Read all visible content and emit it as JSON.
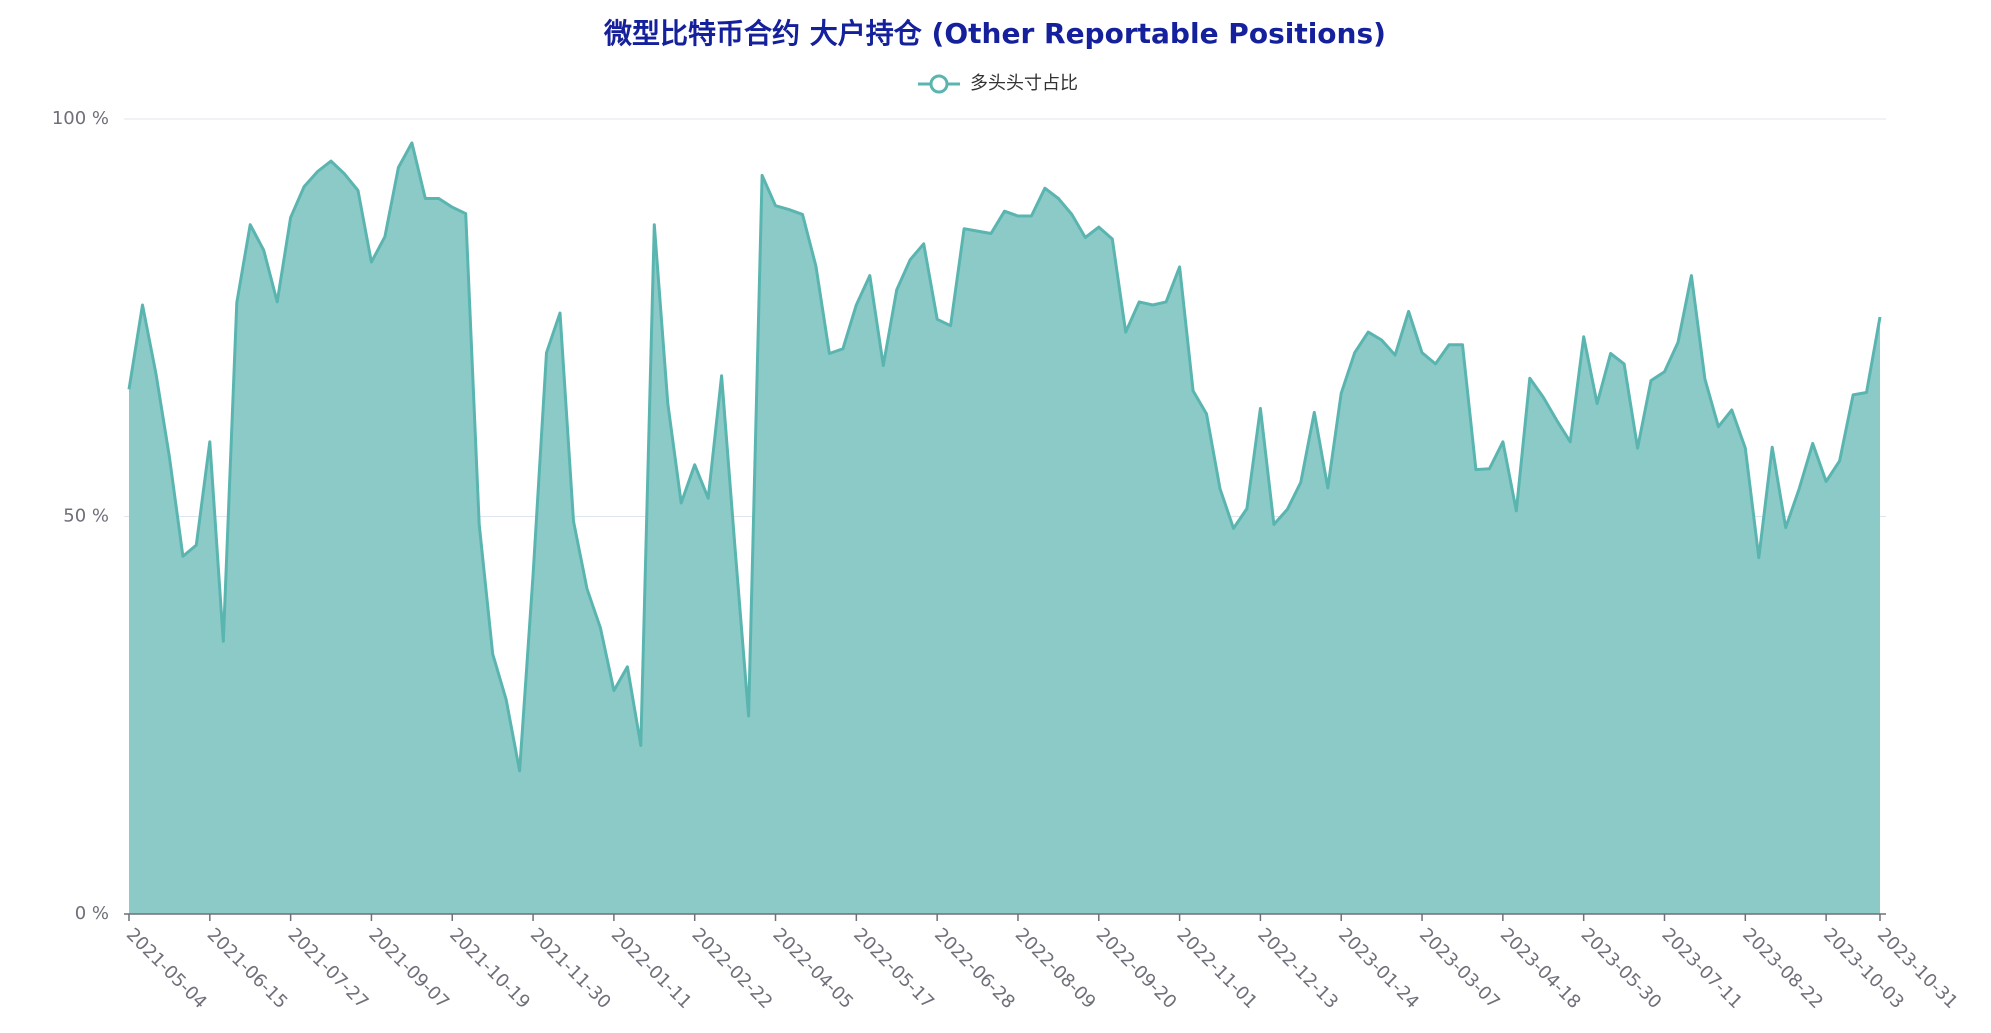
{
  "chart_data": {
    "type": "area",
    "title": "微型比特币合约 大户持仓 (Other Reportable Positions)",
    "title_color": "#14209c",
    "categories": [
      "2021-05-04",
      null,
      null,
      null,
      null,
      null,
      "2021-06-15",
      null,
      null,
      null,
      null,
      null,
      "2021-07-27",
      null,
      null,
      null,
      null,
      null,
      "2021-09-07",
      null,
      null,
      null,
      null,
      null,
      "2021-10-19",
      null,
      null,
      null,
      null,
      null,
      "2021-11-30",
      null,
      null,
      null,
      null,
      null,
      "2022-01-11",
      null,
      null,
      null,
      null,
      null,
      "2022-02-22",
      null,
      null,
      null,
      null,
      null,
      "2022-04-05",
      null,
      null,
      null,
      null,
      null,
      "2022-05-17",
      null,
      null,
      null,
      null,
      null,
      "2022-06-28",
      null,
      null,
      null,
      null,
      null,
      "2022-08-09",
      null,
      null,
      null,
      null,
      null,
      "2022-09-20",
      null,
      null,
      null,
      null,
      null,
      "2022-11-01",
      null,
      null,
      null,
      null,
      null,
      "2022-12-13",
      null,
      null,
      null,
      null,
      null,
      "2023-01-24",
      null,
      null,
      null,
      null,
      null,
      "2023-03-07",
      null,
      null,
      null,
      null,
      null,
      "2023-04-18",
      null,
      null,
      null,
      null,
      null,
      "2023-05-30",
      null,
      null,
      null,
      null,
      null,
      "2023-07-11",
      null,
      null,
      null,
      null,
      null,
      "2023-08-22",
      null,
      null,
      null,
      null,
      null,
      "2023-10-03",
      null,
      null,
      null,
      "2023-10-31"
    ],
    "series": [
      {
        "name": "多头头寸占比",
        "color": "#5ab5b0",
        "fill": "#8ccac7",
        "values": [
          66,
          76.6,
          68,
          57.5,
          45,
          46.4,
          59.4,
          34.3,
          76.9,
          86.7,
          83.5,
          77,
          87.6,
          91.5,
          93.4,
          94.7,
          93.1,
          91,
          82,
          85.2,
          93.9,
          97,
          90,
          90,
          88.9,
          88.1,
          49,
          32.7,
          27,
          18,
          42.7,
          70.6,
          75.6,
          49.4,
          40.9,
          36,
          28.1,
          31.1,
          21.2,
          86.7,
          64.2,
          51.7,
          56.5,
          52.3,
          67.7,
          45.9,
          24.9,
          92.9,
          89.1,
          88.6,
          88,
          81.5,
          70.5,
          71.1,
          76.6,
          80.3,
          69,
          78.5,
          82.3,
          84.3,
          74.8,
          74,
          86.2,
          85.9,
          85.6,
          88.4,
          87.8,
          87.8,
          91.3,
          90,
          88,
          85.1,
          86.4,
          84.9,
          73.2,
          77,
          76.6,
          77,
          81.4,
          65.8,
          62.9,
          53.5,
          48.5,
          51,
          63.6,
          49,
          50.9,
          54.3,
          63.1,
          53.6,
          65.5,
          70.6,
          73.2,
          72.2,
          70.3,
          75.8,
          70.6,
          69.2,
          71.6,
          71.6,
          55.9,
          56,
          59.4,
          50.7,
          67.4,
          65,
          62.1,
          59.4,
          72.6,
          64.2,
          70.5,
          69.2,
          58.6,
          67.1,
          68.2,
          71.9,
          80.3,
          67.3,
          61.3,
          63.4,
          58.6,
          44.8,
          58.7,
          48.6,
          53.5,
          59.2,
          54.4,
          57,
          65.3,
          65.6,
          75.1
        ]
      }
    ],
    "ylim": [
      0,
      100
    ],
    "yticks": [
      {
        "value": 0,
        "label": "0 %"
      },
      {
        "value": 50,
        "label": "50 %"
      },
      {
        "value": 100,
        "label": "100 %"
      }
    ],
    "grid": true
  }
}
